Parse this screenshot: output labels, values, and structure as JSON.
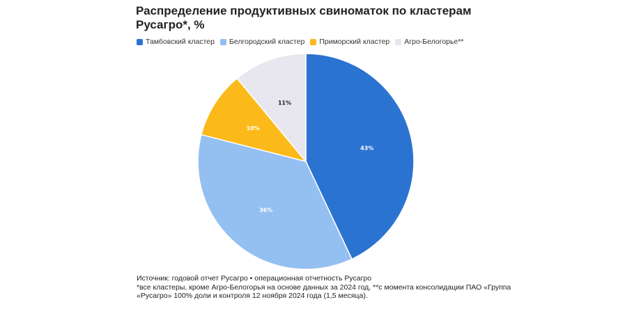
{
  "title": "Распределение продуктивных свиноматок по кластерам Русагро*, %",
  "colors": {
    "tambov": "#2b73d1",
    "belgorod": "#94bff1",
    "primorye": "#fbba19",
    "agro": "#e8e6ee"
  },
  "chart_data": {
    "type": "pie",
    "title": "Распределение продуктивных свиноматок по кластерам Русагро*, %",
    "legend_position": "top-left",
    "categories": [
      "Тамбовский кластер",
      "Белгородский кластер",
      "Приморский кластер",
      "Агро-Белогорье**"
    ],
    "values": [
      43,
      36,
      10,
      11
    ],
    "labels": [
      "43%",
      "36%",
      "10%",
      "11%"
    ],
    "colors": [
      "#2b73d1",
      "#94bff1",
      "#fbba19",
      "#e8e6ee"
    ]
  },
  "source": {
    "line1": "Источник: годовой отчет Русагро • операционная отчетность Русагро",
    "line2": "*все кластеры, кроме Агро-Белогорья на основе данных за 2024 год, **с момента консолидации ПАО «Группа",
    "line3": "«Русагро» 100% доли и контроля 12 ноября 2024 года (1,5 месяца)."
  }
}
